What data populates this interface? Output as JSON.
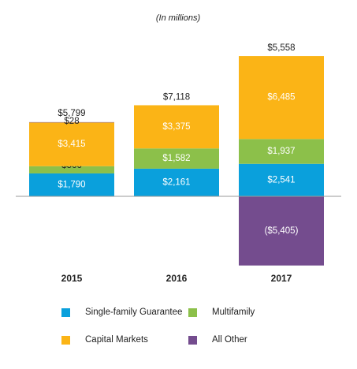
{
  "chart_data": {
    "type": "bar",
    "stacked": true,
    "unit_label": "(In millions)",
    "categories": [
      "2015",
      "2016",
      "2017"
    ],
    "series": [
      {
        "name": "Single-family Guarantee",
        "color": "#0aa0dc",
        "values": [
          1790,
          2161,
          2541
        ],
        "labels": [
          "$1,790",
          "$2,161",
          "$2,541"
        ]
      },
      {
        "name": "Multifamily",
        "color": "#8cc04a",
        "values": [
          566,
          1582,
          1937
        ],
        "labels": [
          "$566",
          "$1,582",
          "$1,937"
        ]
      },
      {
        "name": "Capital Markets",
        "color": "#fbb416",
        "values": [
          3415,
          3375,
          6485
        ],
        "labels": [
          "$3,415",
          "$3,375",
          "$6,485"
        ]
      },
      {
        "name": "All Other",
        "color": "#744c8e",
        "values": [
          28,
          0,
          -5405
        ],
        "labels": [
          "$28",
          "",
          "($5,405)"
        ]
      }
    ],
    "totals": [
      "$5,799",
      "$7,118",
      "$5,558"
    ],
    "legend_position": "bottom",
    "grid": false
  }
}
